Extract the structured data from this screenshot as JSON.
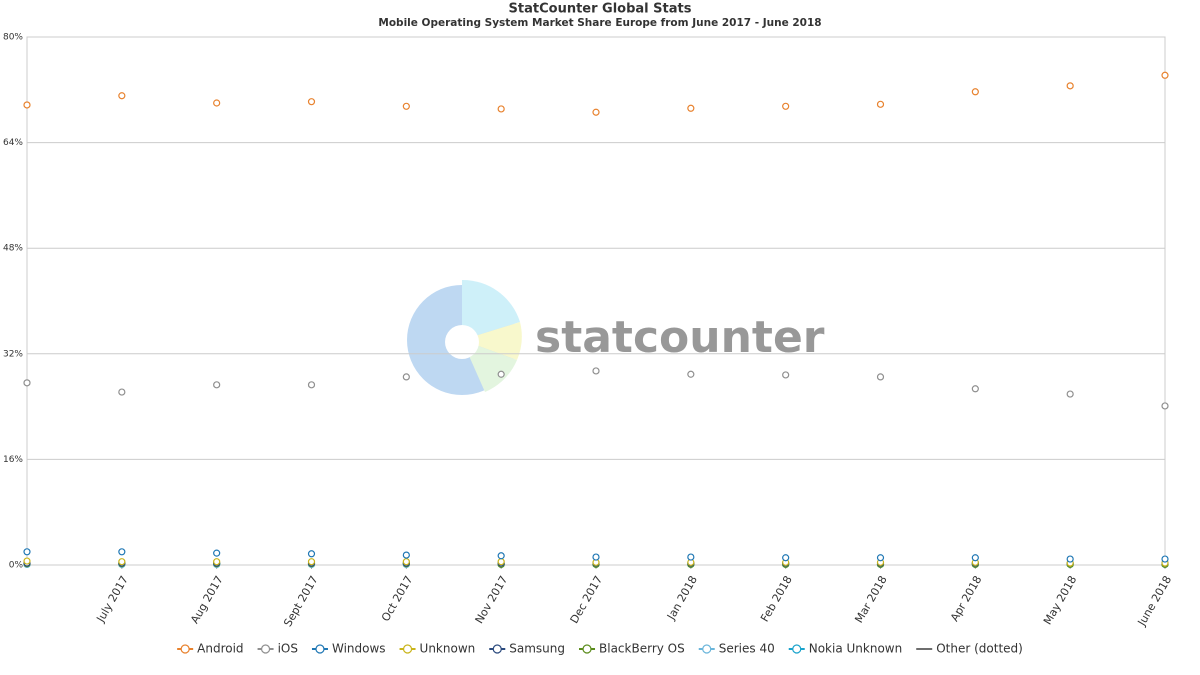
{
  "chart_data": {
    "type": "line",
    "title": "StatCounter Global Stats",
    "subtitle": "Mobile Operating System Market Share Europe from June 2017 - June 2018",
    "watermark": "statcounter",
    "categories": [
      null,
      "July 2017",
      "Aug 2017",
      "Sept 2017",
      "Oct 2017",
      "Nov 2017",
      "Dec 2017",
      "Jan 2018",
      "Feb 2018",
      "Mar 2018",
      "Apr 2018",
      "May 2018",
      "June 2018"
    ],
    "ylim": [
      0,
      80
    ],
    "yticks": [
      {
        "value": 0,
        "label": "0%"
      },
      {
        "value": 16,
        "label": "16%"
      },
      {
        "value": 32,
        "label": "32%"
      },
      {
        "value": 48,
        "label": "48%"
      },
      {
        "value": 64,
        "label": "64%"
      },
      {
        "value": 80,
        "label": "80%"
      }
    ],
    "grid": true,
    "legend": "bottom",
    "series": [
      {
        "name": "Android",
        "color": "#e8822e",
        "values": [
          69.7,
          71.1,
          70.0,
          70.2,
          69.5,
          69.1,
          68.6,
          69.2,
          69.5,
          69.8,
          71.7,
          72.6,
          74.2
        ]
      },
      {
        "name": "iOS",
        "color": "#8f8f8f",
        "values": [
          27.6,
          26.2,
          27.3,
          27.3,
          28.5,
          28.9,
          29.4,
          28.9,
          28.8,
          28.5,
          26.7,
          25.9,
          24.1
        ]
      },
      {
        "name": "Windows",
        "color": "#1f77b4",
        "values": [
          2.0,
          2.0,
          1.8,
          1.7,
          1.5,
          1.4,
          1.2,
          1.2,
          1.1,
          1.1,
          1.1,
          0.9,
          0.9
        ]
      },
      {
        "name": "Unknown",
        "color": "#c9b41a",
        "values": [
          0.6,
          0.5,
          0.5,
          0.5,
          0.5,
          0.5,
          0.4,
          0.4,
          0.4,
          0.4,
          0.4,
          0.3,
          0.3
        ]
      },
      {
        "name": "Samsung",
        "color": "#2b4a7e",
        "values": [
          0.3,
          0.3,
          0.3,
          0.3,
          0.3,
          0.3,
          0.3,
          0.3,
          0.3,
          0.3,
          0.3,
          0.3,
          0.3
        ]
      },
      {
        "name": "BlackBerry OS",
        "color": "#5b8c1c",
        "values": [
          0.2,
          0.2,
          0.2,
          0.2,
          0.2,
          0.1,
          0.1,
          0.1,
          0.1,
          0.1,
          0.1,
          0.1,
          0.1
        ]
      },
      {
        "name": "Series 40",
        "color": "#6bb6db",
        "values": [
          0.1,
          0.1,
          0.1,
          0.1,
          0.1,
          0.1,
          0.1,
          0.1,
          0.1,
          0.1,
          0.1,
          0.1,
          0.1
        ]
      },
      {
        "name": "Nokia Unknown",
        "color": "#1aa3cc",
        "values": [
          0.1,
          0.1,
          0.1,
          0.1,
          0.1,
          0.1,
          0.1,
          0.1,
          0.1,
          0.1,
          0.1,
          0.1,
          0.1
        ]
      },
      {
        "name": "Other (dotted)",
        "color": "#6e6e6e",
        "marker": false,
        "values": [
          0.2,
          0.2,
          0.2,
          0.2,
          0.2,
          0.2,
          0.2,
          0.2,
          0.2,
          0.2,
          0.2,
          0.2,
          0.2
        ]
      }
    ]
  }
}
